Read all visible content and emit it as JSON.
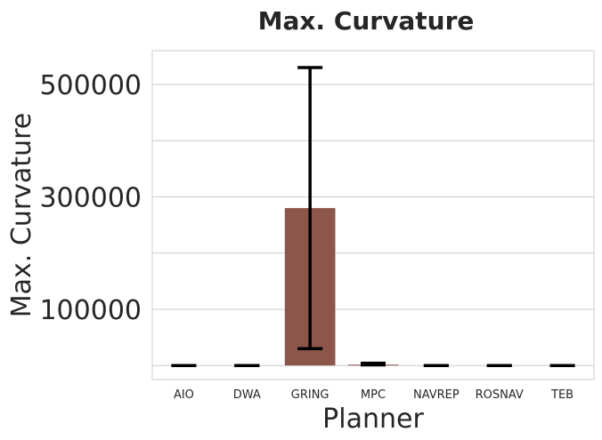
{
  "chart_data": {
    "type": "bar",
    "title": "Max. Curvature",
    "xlabel": "Planner",
    "ylabel": "Max. Curvature",
    "categories": [
      "AIO",
      "DWA",
      "GRING",
      "MPC",
      "NAVREP",
      "ROSNAV",
      "TEB"
    ],
    "values": [
      0,
      0,
      280000,
      1500,
      0,
      0,
      0
    ],
    "error_low": [
      0,
      0,
      30000,
      1000,
      0,
      0,
      0
    ],
    "error_high": [
      0,
      0,
      530000,
      4000,
      0,
      0,
      0
    ],
    "yticks": [
      100000,
      300000,
      500000
    ],
    "ylim": [
      -25000,
      560000
    ],
    "grid": true,
    "bar_color": "#8c564b",
    "error_color": "#000000"
  }
}
